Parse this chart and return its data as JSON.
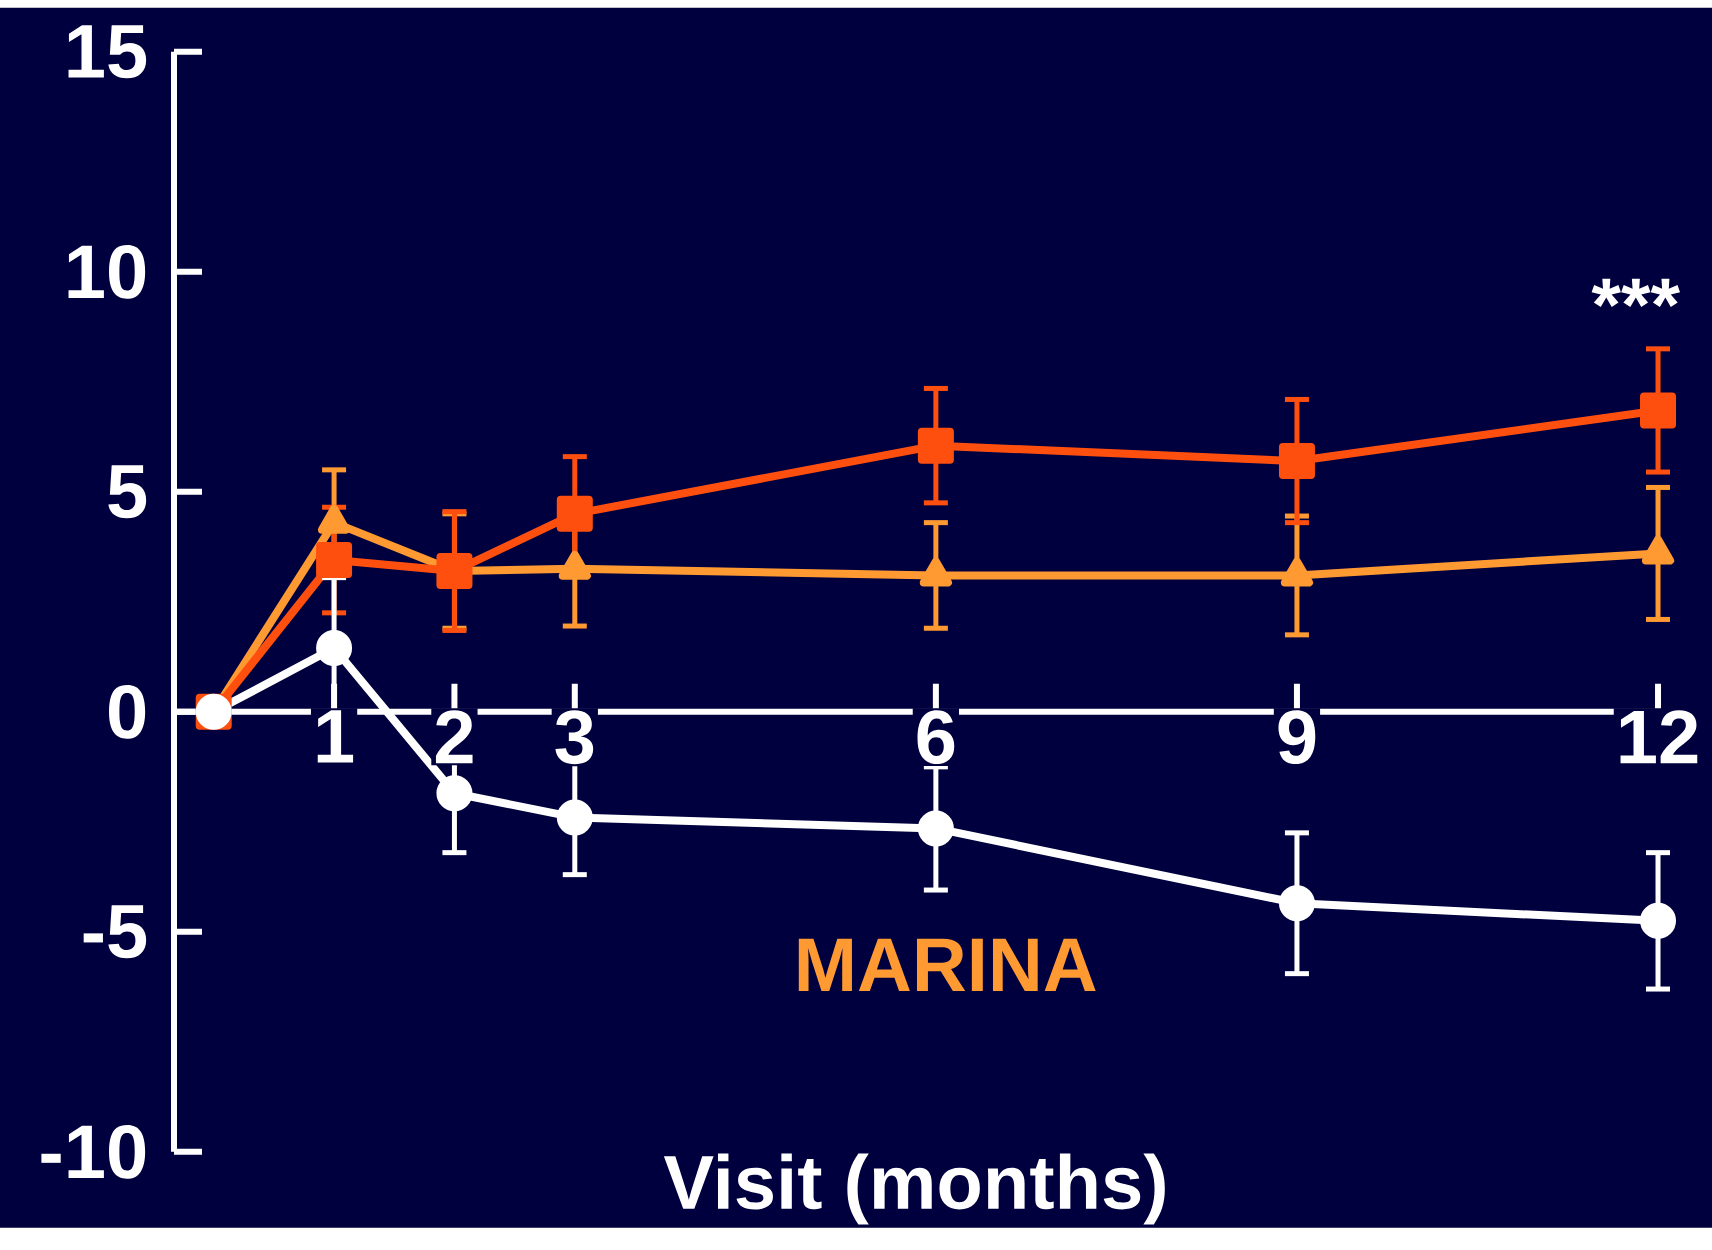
{
  "chart_data": {
    "type": "line",
    "xlabel": "Visit (months)",
    "x": [
      0,
      1,
      2,
      3,
      6,
      9,
      12
    ],
    "xlim": [
      -0.33,
      12
    ],
    "ylim": [
      -10,
      15
    ],
    "xticks": [
      1,
      2,
      3,
      6,
      9,
      12
    ],
    "yticks": [
      -10,
      -5,
      0,
      5,
      10,
      15
    ],
    "grid": false,
    "line_style": "solid",
    "series": [
      {
        "color": "#ff9a33",
        "marker": "triangle",
        "values": [
          0,
          4.3,
          3.2,
          3.25,
          3.1,
          3.1,
          3.6
        ],
        "errors": [
          null,
          1.2,
          1.3,
          1.3,
          1.2,
          1.35,
          1.5
        ]
      },
      {
        "color": "#ff4f0f",
        "marker": "square",
        "values": [
          0,
          3.45,
          3.2,
          4.5,
          6.05,
          5.7,
          6.85
        ],
        "errors": [
          null,
          1.2,
          1.35,
          1.3,
          1.3,
          1.4,
          1.4
        ]
      },
      {
        "color": "#ffffff",
        "marker": "circle",
        "values": [
          0,
          1.45,
          -1.85,
          -2.4,
          -2.65,
          -4.35,
          -4.75
        ],
        "errors": [
          null,
          1.6,
          1.35,
          1.3,
          1.4,
          1.6,
          1.55
        ]
      }
    ],
    "annotations": [
      "***",
      "MARINA"
    ]
  }
}
